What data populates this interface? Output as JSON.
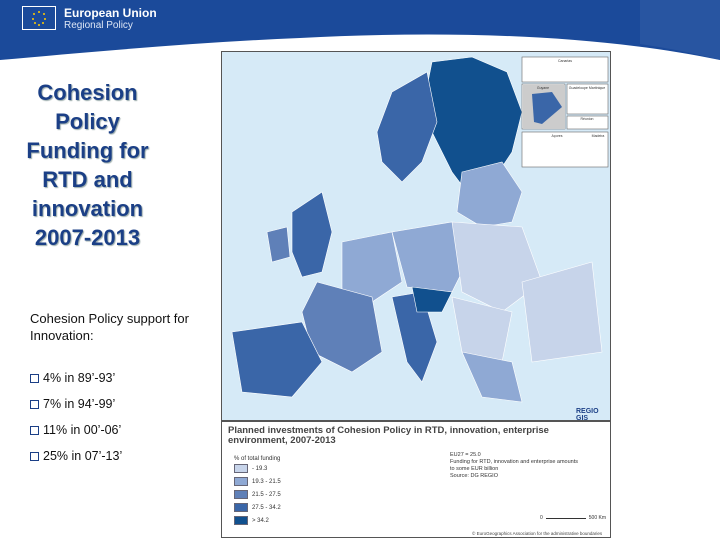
{
  "header": {
    "brand_line1": "European Union",
    "brand_line2": "Regional Policy",
    "color": "#1b4a9a"
  },
  "slide": {
    "title": "Cohesion Policy Funding for RTD and innovation 2007-2013",
    "support_text": "Cohesion Policy support for Innovation:",
    "bullets": [
      "4% in 89’-93’",
      "7% in 94’-99’",
      "11% in 00’-06’",
      "25% in 07’-13’"
    ]
  },
  "map": {
    "insets": [
      "Canarias",
      "Guyane",
      "Guadeloupe Martinique",
      "Réunion",
      "Açores",
      "Madeira"
    ],
    "logo": "REGIO GIS",
    "title": "Planned investments of Cohesion Policy in RTD, innovation, enterprise environment, 2007-2013",
    "legend_title": "% of total funding",
    "legend": [
      {
        "label": "- 19.3",
        "color": "#c7d4ea"
      },
      {
        "label": "19.3 - 21.5",
        "color": "#8fa9d4"
      },
      {
        "label": "21.5 - 27.5",
        "color": "#5f80b8"
      },
      {
        "label": "27.5 - 34.2",
        "color": "#3a66a8"
      },
      {
        "label": "> 34.2",
        "color": "#11508e"
      }
    ],
    "note_lines": [
      "EU27 = 25.0",
      "Funding for RTD, innovation and enterprise amounts",
      "to some EUR billion",
      "Source: DG REGIO"
    ],
    "scale": [
      "0",
      "500 Km"
    ],
    "copyright": "© EuroGeographics Association for the administrative boundaries"
  }
}
